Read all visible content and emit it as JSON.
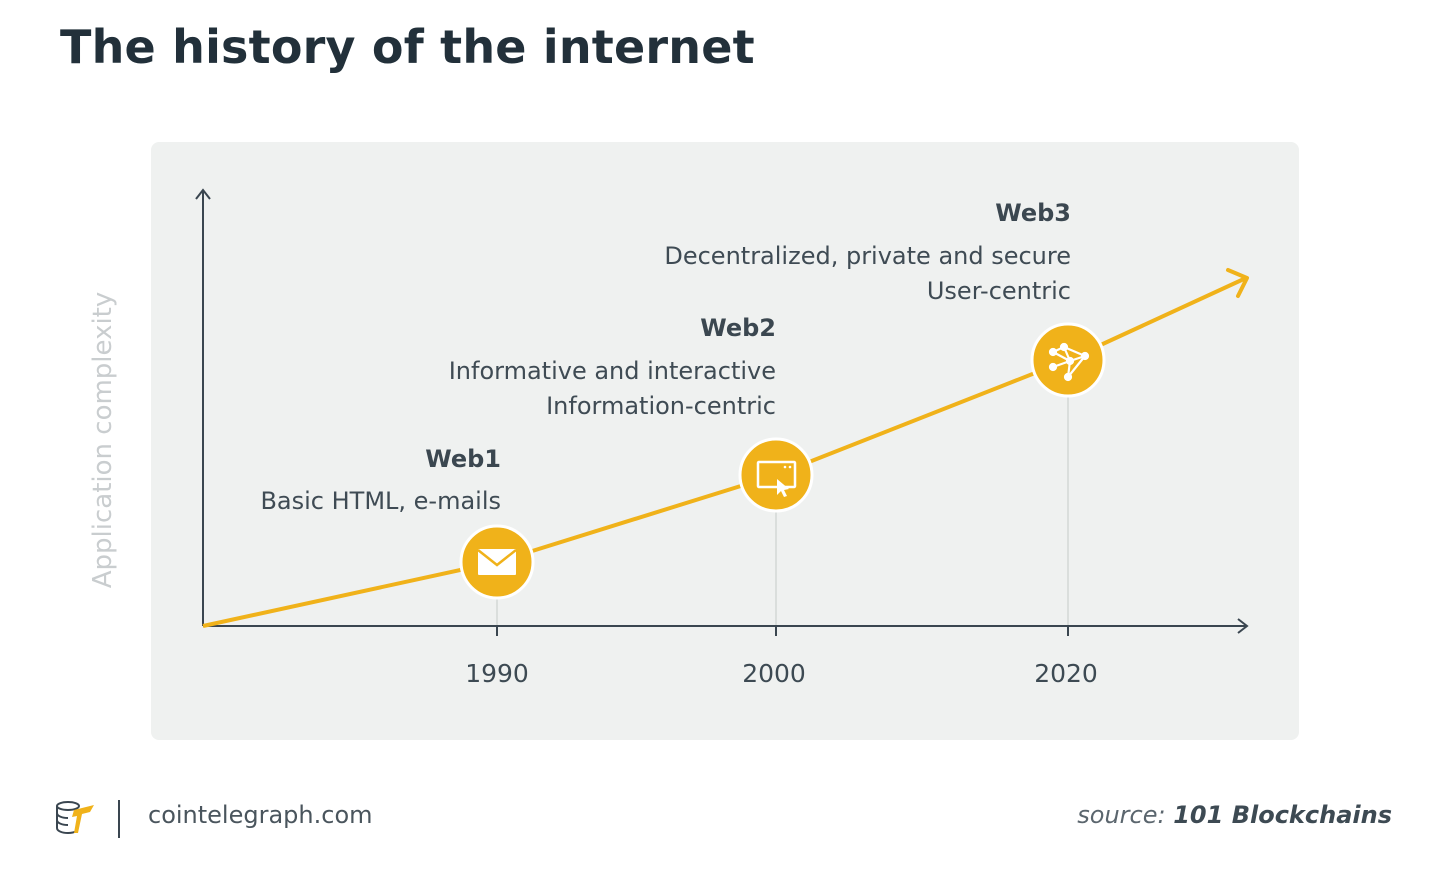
{
  "title": "The history of the internet",
  "colors": {
    "accent": "#f0b21a",
    "axis": "#3a4650",
    "panel": "#eff1f0"
  },
  "axis": {
    "y_label": "Application complexity"
  },
  "stages": [
    {
      "name": "Web1",
      "year": "1990",
      "icon": "envelope-icon",
      "lines": [
        "Basic HTML, e-mails"
      ]
    },
    {
      "name": "Web2",
      "year": "2000",
      "icon": "browser-window-cursor-icon",
      "lines": [
        "Informative and interactive",
        "Information-centric"
      ]
    },
    {
      "name": "Web3",
      "year": "2020",
      "icon": "network-nodes-icon",
      "lines": [
        "Decentralized, private and secure",
        "User-centric"
      ]
    }
  ],
  "footer": {
    "brand": "cointelegraph.com",
    "logo_icon": "cointelegraph-logo-icon",
    "source_prefix": "source:",
    "source_name": "101 Blockchains"
  }
}
